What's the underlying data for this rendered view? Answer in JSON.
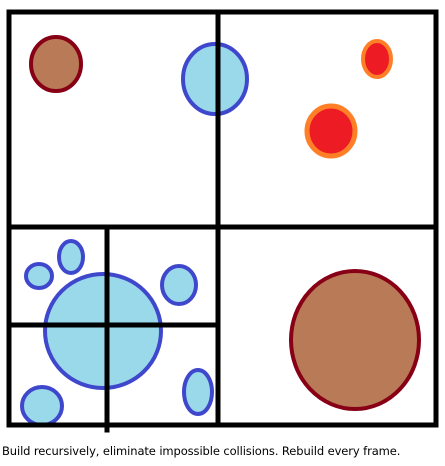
{
  "caption": "Build recursively, eliminate impossible collisions. Rebuild every frame.",
  "colors": {
    "background": "#ffffff",
    "grid_line": "#000000",
    "brown_fill": "#b97a57",
    "brown_stroke": "#880015",
    "blue_fill": "#99d9ea",
    "blue_stroke": "#3f48cc",
    "red_fill": "#ed1c24",
    "red_stroke": "#ff7f27"
  }
}
